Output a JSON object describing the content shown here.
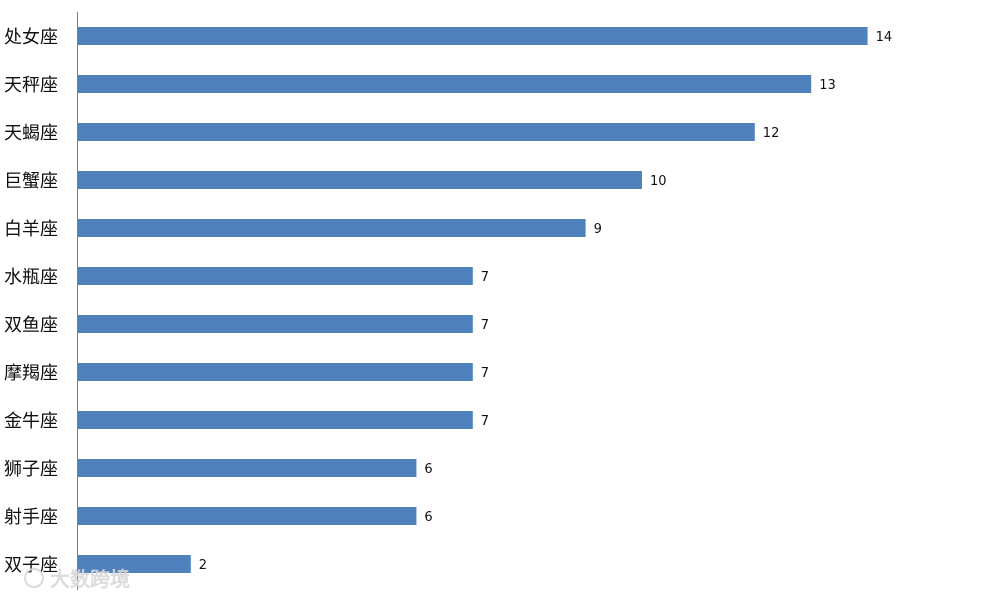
{
  "chart_data": {
    "type": "bar",
    "orientation": "horizontal",
    "categories": [
      "处女座",
      "天秤座",
      "天蝎座",
      "巨蟹座",
      "白羊座",
      "水瓶座",
      "双鱼座",
      "摩羯座",
      "金牛座",
      "狮子座",
      "射手座",
      "双子座"
    ],
    "values": [
      14,
      13,
      12,
      10,
      9,
      7,
      7,
      7,
      7,
      6,
      6,
      2
    ],
    "xlim": [
      0,
      15
    ],
    "grid": false,
    "legend": "none",
    "bar_color": "#4F81BD",
    "data_labels": true
  },
  "watermark": {
    "text": "大数跨境"
  }
}
